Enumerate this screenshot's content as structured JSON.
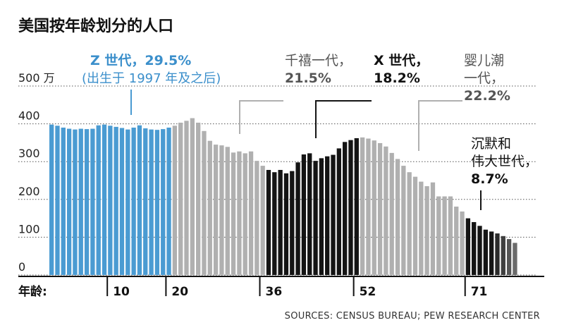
{
  "chart_data": {
    "type": "bar",
    "title": "美国按年龄划分的人口",
    "unit": "万",
    "ylim": [
      0,
      500
    ],
    "yticks": [
      0,
      100,
      200,
      300,
      400,
      500
    ],
    "ytick_labels": [
      "0",
      "100",
      "200",
      "300",
      "400",
      "500 万"
    ],
    "xlabel": "年龄:",
    "x_tick_labels": [
      {
        "age": 10,
        "label": "10"
      },
      {
        "age": 20,
        "label": "20"
      },
      {
        "age": 36,
        "label": "36"
      },
      {
        "age": 52,
        "label": "52"
      },
      {
        "age": 71,
        "label": "71"
      }
    ],
    "x": [
      0,
      1,
      2,
      3,
      4,
      5,
      6,
      7,
      8,
      9,
      10,
      11,
      12,
      13,
      14,
      15,
      16,
      17,
      18,
      19,
      20,
      21,
      22,
      23,
      24,
      25,
      26,
      27,
      28,
      29,
      30,
      31,
      32,
      33,
      34,
      35,
      36,
      37,
      38,
      39,
      40,
      41,
      42,
      43,
      44,
      45,
      46,
      47,
      48,
      49,
      50,
      51,
      52,
      53,
      54,
      55,
      56,
      57,
      58,
      59,
      60,
      61,
      62,
      63,
      64,
      65,
      66,
      67,
      68,
      69,
      70,
      71,
      72,
      73,
      74,
      75,
      76,
      77,
      78,
      79,
      80,
      81,
      82,
      83,
      84
    ],
    "values": [
      398,
      395,
      390,
      387,
      385,
      387,
      386,
      387,
      396,
      398,
      395,
      392,
      389,
      385,
      390,
      396,
      388,
      385,
      384,
      386,
      390,
      395,
      403,
      408,
      415,
      403,
      381,
      355,
      345,
      343,
      339,
      324,
      327,
      322,
      327,
      302,
      289,
      278,
      272,
      278,
      269,
      275,
      298,
      319,
      322,
      302,
      309,
      314,
      318,
      335,
      352,
      357,
      362,
      364,
      361,
      356,
      349,
      340,
      323,
      307,
      289,
      272,
      260,
      247,
      235,
      245,
      208,
      208,
      208,
      181,
      168,
      150,
      140,
      130,
      120,
      115,
      110,
      103,
      95,
      85,
      0,
      0,
      0,
      0,
      0
    ],
    "series": [
      {
        "name": "Z 世代",
        "share": "29.5%",
        "note": "(出生于 1997 年及之后)",
        "from": 0,
        "to": 20,
        "color": "#4a9bd2"
      },
      {
        "name": "千禧一代",
        "share": "21.5%",
        "from": 21,
        "to": 36,
        "color": "#b0b0b0"
      },
      {
        "name": "X 世代",
        "share": "18.2%",
        "from": 37,
        "to": 52,
        "color": "#141414"
      },
      {
        "name": "婴儿潮一代",
        "share": "22.2%",
        "from": 53,
        "to": 70,
        "color": "#b0b0b0"
      },
      {
        "name": "沉默和伟大世代",
        "share": "8.7%",
        "from": 71,
        "to": 84,
        "color": "#141414"
      }
    ],
    "annotations": {
      "genz": {
        "line1": "Z 世代，29.5%",
        "line2": "(出生于 1997 年及之后)"
      },
      "millennial": {
        "line1": "千禧一代，",
        "line2": "21.5%"
      },
      "genx": {
        "line1": "X 世代，",
        "line2": "18.2%"
      },
      "boomer": {
        "line1": "婴儿潮",
        "line2": "一代，",
        "line3": "22.2%"
      },
      "silent": {
        "line1": "沉默和",
        "line2": "伟大世代，",
        "line3": "8.7%"
      }
    },
    "source": "SOURCES: CENSUS BUREAU; PEW RESEARCH CENTER"
  }
}
